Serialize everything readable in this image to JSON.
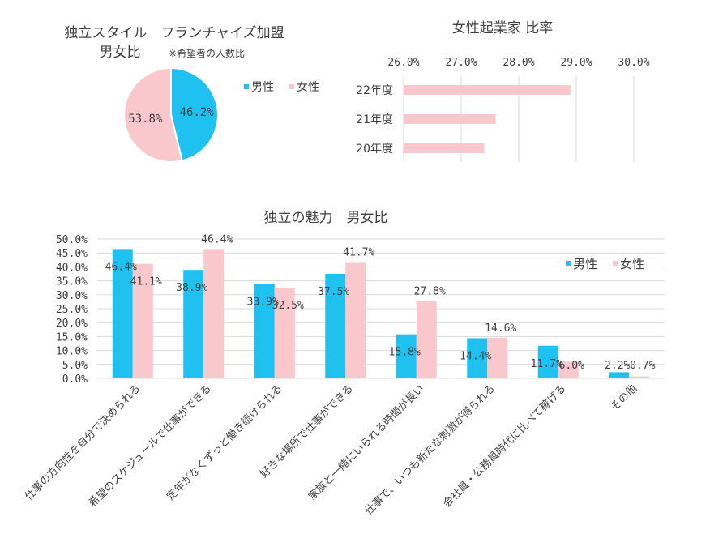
{
  "colors": {
    "male": "#1ec1f0",
    "female": "#f8c8cc",
    "grid": "#d9d9d9",
    "text": "#404040"
  },
  "legend_icon": "square-marker-icon",
  "chart_data": [
    {
      "type": "pie",
      "title": "独立スタイル　フランチャイズ加盟",
      "subtitle_main": "男女比",
      "subtitle_note": "※希望者の人数比",
      "categories": [
        "男性",
        "女性"
      ],
      "values": [
        46.2,
        53.8
      ],
      "labels": [
        "46.2%",
        "53.8%"
      ],
      "legend_position": "right"
    },
    {
      "type": "bar",
      "orientation": "horizontal",
      "title": "女性起業家 比率",
      "categories": [
        "22年度",
        "21年度",
        "20年度"
      ],
      "values": [
        28.9,
        27.6,
        27.4
      ],
      "xlim": [
        26.0,
        30.0
      ],
      "ticks": [
        "26.0%",
        "27.0%",
        "28.0%",
        "29.0%",
        "30.0%"
      ],
      "tick_values": [
        26,
        27,
        28,
        29,
        30
      ],
      "grid": true
    },
    {
      "type": "bar",
      "title": "独立の魅力　男女比",
      "categories": [
        "仕事の方向性を自分で決められる",
        "希望のスケジュールで仕事ができる",
        "定年がなくずっと働き続けられる",
        "好きな場所で仕事ができる",
        "家族と一緒にいられる時間が長い",
        "仕事で、いつも新たな刺激が得られる",
        "会社員・公務員時代に比べて稼げる",
        "その他"
      ],
      "series": [
        {
          "name": "男性",
          "values": [
            46.4,
            38.9,
            33.9,
            37.5,
            15.8,
            14.4,
            11.7,
            2.2
          ],
          "labels": [
            "46.4%",
            "38.9%",
            "33.9%",
            "37.5%",
            "15.8%",
            "14.4%",
            "11.7%",
            "2.2%"
          ]
        },
        {
          "name": "女性",
          "values": [
            41.1,
            46.4,
            32.5,
            41.7,
            27.8,
            14.6,
            6.0,
            0.7
          ],
          "labels": [
            "41.1%",
            "46.4%",
            "32.5%",
            "41.7%",
            "27.8%",
            "14.6%",
            "6.0%",
            "0.7%"
          ]
        }
      ],
      "ylim": [
        0,
        50
      ],
      "ticks": [
        "50.0%",
        "45.0%",
        "40.0%",
        "35.0%",
        "30.0%",
        "25.0%",
        "20.0%",
        "15.0%",
        "10.0%",
        "5.0%",
        "0.0%"
      ],
      "tick_values": [
        50,
        45,
        40,
        35,
        30,
        25,
        20,
        15,
        10,
        5,
        0
      ],
      "legend_position": "top-right",
      "grid": true
    }
  ]
}
